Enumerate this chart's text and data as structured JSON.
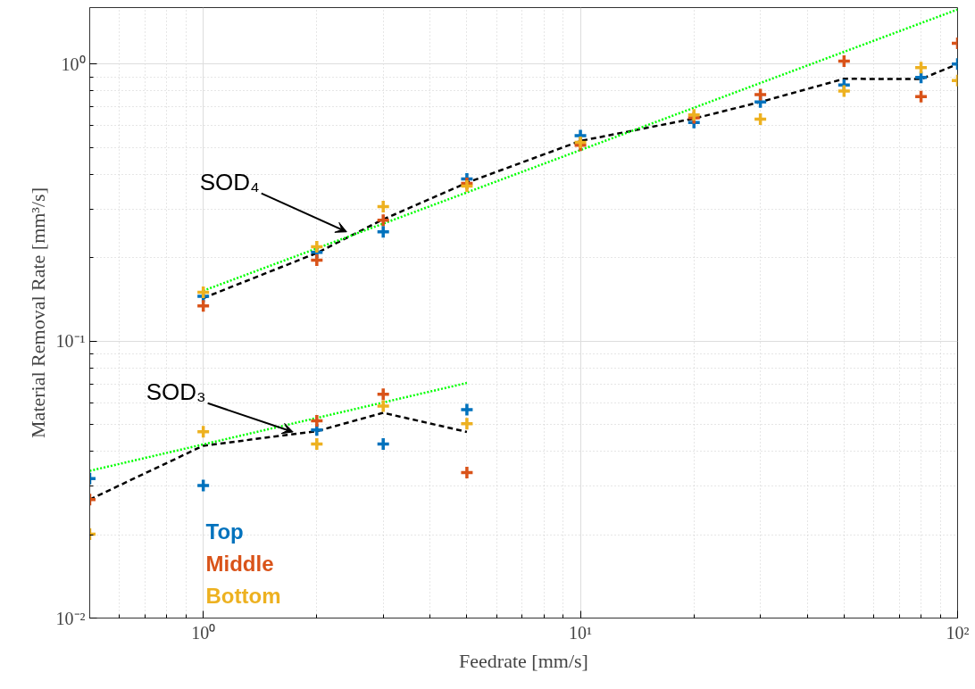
{
  "chart_data": {
    "type": "scatter",
    "xlabel": "Feedrate [mm/s]",
    "ylabel": "Material Removal Rate [mm³/s]",
    "log": "xy",
    "xlim": [
      0.5,
      100
    ],
    "ylim": [
      0.01,
      1.6
    ],
    "xticks": [
      {
        "value": 1,
        "label": "10⁰"
      },
      {
        "value": 10,
        "label": "10¹"
      },
      {
        "value": 100,
        "label": "10²"
      }
    ],
    "yticks": [
      {
        "value": 0.01,
        "label": "10⁻²"
      },
      {
        "value": 0.1,
        "label": "10⁻¹"
      },
      {
        "value": 1,
        "label": "10⁰"
      }
    ],
    "grid": true,
    "legend": "bottom left",
    "series": [
      {
        "name": "Top",
        "color": "#0072bd",
        "marker": "cross",
        "x": [
          0.5,
          1,
          2,
          3,
          5,
          1,
          2,
          3,
          5,
          10,
          20,
          30,
          50,
          80,
          100
        ],
        "values": [
          0.0319,
          0.0301,
          0.0478,
          0.0425,
          0.0565,
          0.145,
          0.209,
          0.248,
          0.385,
          0.552,
          0.616,
          0.73,
          0.841,
          0.896,
          1.0
        ]
      },
      {
        "name": "Middle",
        "color": "#d95319",
        "marker": "cross",
        "x": [
          0.5,
          1,
          2,
          3,
          5,
          1,
          2,
          3,
          5,
          10,
          20,
          30,
          50,
          80,
          100
        ],
        "values": [
          0.0268,
          null,
          0.0515,
          0.0643,
          0.0335,
          0.134,
          0.196,
          0.273,
          0.371,
          0.509,
          0.64,
          0.776,
          1.025,
          0.763,
          1.19
        ]
      },
      {
        "name": "Bottom",
        "color": "#edb120",
        "marker": "cross",
        "x": [
          0.5,
          1,
          2,
          3,
          5,
          1,
          2,
          3,
          5,
          10,
          20,
          30,
          50,
          80,
          100
        ],
        "values": [
          0.0201,
          0.0471,
          0.0425,
          0.0582,
          0.0503,
          0.15,
          0.219,
          0.306,
          0.363,
          0.522,
          0.656,
          0.633,
          0.8,
          0.971,
          0.873
        ]
      },
      {
        "type": "line",
        "color": "#000000",
        "line_style": "dashed",
        "x": [
          1,
          2,
          3,
          5,
          10,
          20,
          30,
          50,
          80,
          100
        ],
        "values": [
          0.143,
          0.208,
          0.275,
          0.373,
          0.528,
          0.636,
          0.73,
          0.885,
          0.883,
          1.0
        ]
      },
      {
        "type": "line",
        "color": "#000000",
        "line_style": "dashed",
        "x": [
          0.5,
          1,
          2,
          3,
          5
        ],
        "values": [
          0.0268,
          0.0419,
          0.0473,
          0.0551,
          0.047
        ]
      },
      {
        "type": "line",
        "color": "#00ff00",
        "line_style": "dotted",
        "x": [
          1,
          100
        ],
        "values": [
          0.152,
          1.575
        ]
      },
      {
        "type": "line",
        "color": "#00ff00",
        "line_style": "dotted",
        "x": [
          0.5,
          5
        ],
        "values": [
          0.034,
          0.0706
        ]
      }
    ],
    "annotations": [
      {
        "text": "SOD₄",
        "x": 2.4,
        "y": 0.248
      },
      {
        "text": "SOD₃",
        "x": 1.73,
        "y": 0.047
      }
    ]
  }
}
